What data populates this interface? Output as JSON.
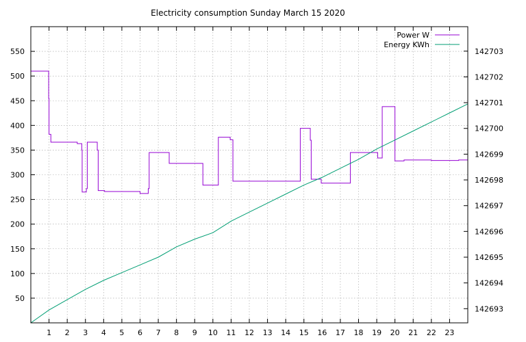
{
  "chart_data": {
    "type": "line",
    "title": "Electricity consumption Sunday March 15 2020",
    "x_ticks": [
      "1",
      "2",
      "3",
      "4",
      "5",
      "6",
      "7",
      "8",
      "9",
      "10",
      "11",
      "12",
      "13",
      "14",
      "15",
      "16",
      "17",
      "18",
      "19",
      "20",
      "21",
      "22",
      "23"
    ],
    "xlim": [
      0,
      24
    ],
    "y_left_ticks": [
      "50",
      "100",
      "150",
      "200",
      "250",
      "300",
      "350",
      "400",
      "450",
      "500",
      "550"
    ],
    "y_left_lim": [
      0,
      600
    ],
    "y_right_ticks": [
      "142693",
      "142694",
      "142695",
      "142696",
      "142697",
      "142698",
      "142699",
      "142700",
      "142701",
      "142702",
      "142703"
    ],
    "y_right_lim": [
      142692.45,
      142703.95
    ],
    "grid": true,
    "legend_position": "top-right",
    "series": [
      {
        "name": "Power W",
        "axis": "left",
        "color": "#9400d3",
        "step": true,
        "points": [
          [
            0,
            510
          ],
          [
            0.98,
            510
          ],
          [
            0.98,
            455
          ],
          [
            1.0,
            455
          ],
          [
            1.0,
            382
          ],
          [
            1.1,
            382
          ],
          [
            1.1,
            366
          ],
          [
            2.55,
            366
          ],
          [
            2.55,
            363
          ],
          [
            2.8,
            363
          ],
          [
            2.8,
            350
          ],
          [
            2.82,
            350
          ],
          [
            2.82,
            265
          ],
          [
            3.05,
            265
          ],
          [
            3.05,
            272
          ],
          [
            3.1,
            272
          ],
          [
            3.1,
            366
          ],
          [
            3.65,
            366
          ],
          [
            3.65,
            350
          ],
          [
            3.7,
            350
          ],
          [
            3.7,
            268
          ],
          [
            4.05,
            268
          ],
          [
            4.05,
            266
          ],
          [
            6.0,
            266
          ],
          [
            6.0,
            262
          ],
          [
            6.45,
            262
          ],
          [
            6.45,
            272
          ],
          [
            6.5,
            272
          ],
          [
            6.5,
            345
          ],
          [
            7.6,
            345
          ],
          [
            7.6,
            323
          ],
          [
            9.45,
            323
          ],
          [
            9.45,
            279
          ],
          [
            10.3,
            279
          ],
          [
            10.3,
            376
          ],
          [
            10.95,
            376
          ],
          [
            10.95,
            371
          ],
          [
            11.1,
            371
          ],
          [
            11.1,
            287
          ],
          [
            14.8,
            287
          ],
          [
            14.8,
            394
          ],
          [
            15.35,
            394
          ],
          [
            15.35,
            370
          ],
          [
            15.4,
            370
          ],
          [
            15.4,
            291
          ],
          [
            15.95,
            291
          ],
          [
            15.95,
            283
          ],
          [
            17.55,
            283
          ],
          [
            17.55,
            345
          ],
          [
            19.05,
            345
          ],
          [
            19.05,
            334
          ],
          [
            19.3,
            334
          ],
          [
            19.3,
            438
          ],
          [
            20.0,
            438
          ],
          [
            20.0,
            328
          ],
          [
            20.5,
            328
          ],
          [
            20.5,
            330
          ],
          [
            22.0,
            330
          ],
          [
            22.0,
            329
          ],
          [
            23.5,
            329
          ],
          [
            23.5,
            330
          ],
          [
            24,
            330
          ]
        ]
      },
      {
        "name": "Energy KWh",
        "axis": "right",
        "color": "#009e73",
        "step": false,
        "points": [
          [
            0,
            142692.45
          ],
          [
            1,
            142692.95
          ],
          [
            2,
            142693.35
          ],
          [
            3,
            142693.75
          ],
          [
            4,
            142694.1
          ],
          [
            5,
            142694.4
          ],
          [
            6,
            142694.7
          ],
          [
            7,
            142695.0
          ],
          [
            8,
            142695.4
          ],
          [
            9,
            142695.7
          ],
          [
            10,
            142695.95
          ],
          [
            11,
            142696.4
          ],
          [
            12,
            142696.75
          ],
          [
            13,
            142697.1
          ],
          [
            14,
            142697.45
          ],
          [
            15,
            142697.8
          ],
          [
            16,
            142698.1
          ],
          [
            17,
            142698.45
          ],
          [
            18,
            142698.8
          ],
          [
            19,
            142699.2
          ],
          [
            20,
            142699.55
          ],
          [
            21,
            142699.9
          ],
          [
            22,
            142700.25
          ],
          [
            23,
            142700.6
          ],
          [
            24,
            142700.95
          ]
        ]
      }
    ]
  }
}
